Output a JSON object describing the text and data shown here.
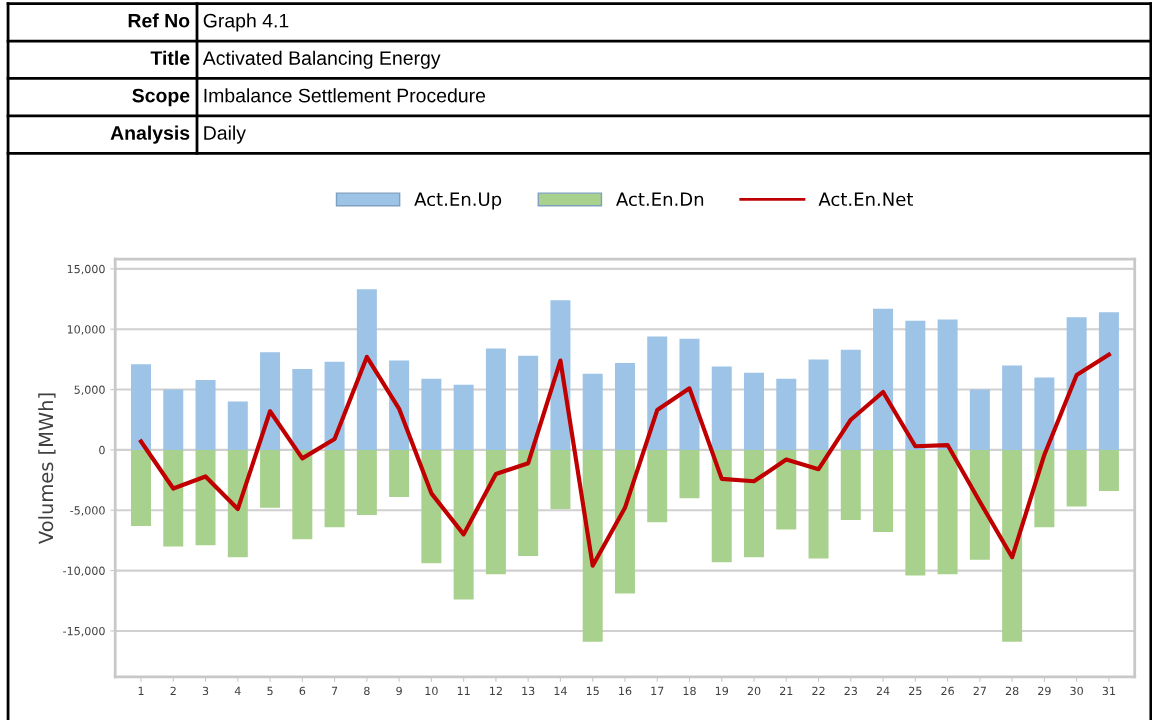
{
  "chart_data": {
    "type": "bar",
    "annotations": [
      "Ref No",
      "Graph 4.1",
      "Title",
      "Activated Balancing Energy",
      "Scope",
      "Imbalance Settlement Procedure",
      "Analysis",
      "Daily"
    ],
    "ylabel": "Volumes [MWh]",
    "categories": [
      "1",
      "2",
      "3",
      "4",
      "5",
      "6",
      "7",
      "8",
      "9",
      "10",
      "11",
      "12",
      "13",
      "14",
      "15",
      "16",
      "17",
      "18",
      "19",
      "20",
      "21",
      "22",
      "23",
      "24",
      "25",
      "26",
      "27",
      "28",
      "29",
      "30",
      "31"
    ],
    "series": [
      {
        "name": "Act.En.Up",
        "color": "#9dc3e6",
        "values": [
          7100,
          5000,
          5800,
          4000,
          8100,
          6700,
          7300,
          13300,
          7400,
          5900,
          5400,
          8400,
          7800,
          12400,
          6300,
          7200,
          9400,
          9200,
          6900,
          6400,
          5900,
          7500,
          8300,
          11700,
          10700,
          10800,
          5000,
          7000,
          6000,
          11000,
          11400
        ]
      },
      {
        "name": "Act.En.Dn",
        "color": "#a9d18e",
        "values": [
          -6300,
          -8000,
          -7900,
          -8900,
          -4800,
          -7400,
          -6400,
          -5400,
          -3900,
          -9400,
          -12400,
          -10300,
          -8800,
          -4900,
          -15900,
          -11900,
          -6000,
          -4000,
          -9300,
          -8900,
          -6600,
          -9000,
          -5800,
          -6800,
          -10400,
          -10300,
          -9100,
          -15900,
          -6400,
          -4700,
          -3400
        ]
      },
      {
        "name": "Act.En.Net",
        "type": "line",
        "color": "#c00000",
        "values": [
          700,
          -3200,
          -2200,
          -4900,
          3200,
          -700,
          900,
          7700,
          3400,
          -3600,
          -7000,
          -2000,
          -1100,
          7400,
          -9600,
          -4800,
          3300,
          5100,
          -2400,
          -2600,
          -800,
          -1600,
          2500,
          4800,
          300,
          400,
          -4300,
          -8900,
          -400,
          6200,
          7900
        ]
      }
    ],
    "ylim": [
      -18800,
      15800
    ],
    "yticks": [
      {
        "value": -15000,
        "label": "-15,000"
      },
      {
        "value": -10000,
        "label": "-10,000"
      },
      {
        "value": -5000,
        "label": "-5,000"
      },
      0,
      {
        "value": 5000,
        "label": "5,000"
      },
      {
        "value": 10000,
        "label": "10,000"
      },
      {
        "value": 15000,
        "label": "15,000"
      }
    ],
    "stacked": true,
    "grid": "y",
    "legend": "top",
    "marker": "none",
    "line_style": "solid"
  }
}
